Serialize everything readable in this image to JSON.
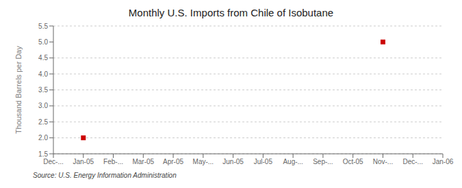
{
  "chart_data": {
    "type": "scatter",
    "title": "Monthly U.S. Imports from Chile of Isobutane",
    "ylabel": "Thousand Barrels per Day",
    "annotation": "Source: U.S. Energy Information Administration",
    "categories": [
      "Dec-...",
      "Jan-05",
      "Feb-...",
      "Mar-05",
      "Apr-05",
      "May-...",
      "Jun-05",
      "Jul-05",
      "Aug-...",
      "Sep-...",
      "Oct-05",
      "Nov-...",
      "Dec-...",
      "Jan-06"
    ],
    "values": [
      null,
      2.0,
      null,
      null,
      null,
      null,
      null,
      null,
      null,
      null,
      null,
      5.0,
      null,
      null
    ],
    "color": "#cc0000",
    "marker": "square",
    "ylim": [
      1.5,
      5.5
    ],
    "yticks": [
      1.5,
      {
        "value": 2.0,
        "label": "2.0"
      },
      2.5,
      {
        "value": 3.0,
        "label": "3.0"
      },
      3.5,
      {
        "value": 4.0,
        "label": "4.0"
      },
      4.5,
      {
        "value": 5.0,
        "label": "5.0"
      },
      5.5
    ],
    "grid": true
  }
}
